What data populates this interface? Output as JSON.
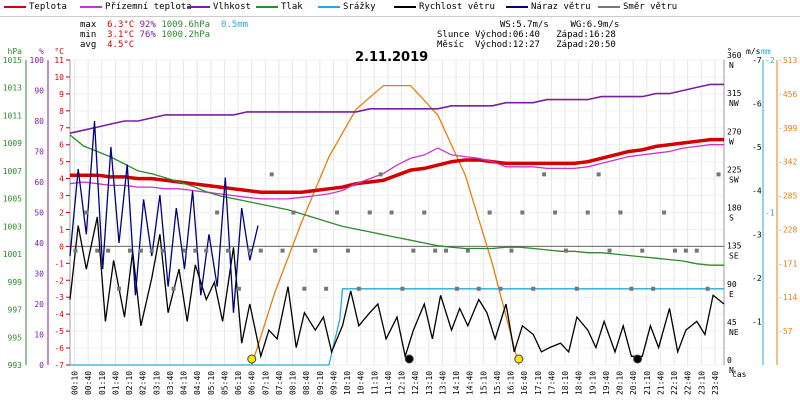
{
  "legend": [
    {
      "label": "Teplota",
      "color": "#d40000"
    },
    {
      "label": "Přízemní teplota",
      "color": "#cc33cc"
    },
    {
      "label": "Vlhkost",
      "color": "#7a1fa2"
    },
    {
      "label": "Tlak",
      "color": "#2d8a2d"
    },
    {
      "label": "Srážky",
      "color": "#22aadd"
    },
    {
      "label": "Rychlost větru",
      "color": "#000000"
    },
    {
      "label": "Náraz větru",
      "color": "#000080"
    },
    {
      "label": "Směr větru",
      "color": "#777777"
    }
  ],
  "stats": {
    "max_label": "max",
    "min_label": "min",
    "avg_label": "avg",
    "max_temp": "6.3°C",
    "max_hum": "92%",
    "max_press": "1009.6hPa",
    "max_rain": "0.5mm",
    "min_temp": "3.1°C",
    "min_hum": "76%",
    "min_press": "1000.2hPa",
    "avg_temp": "4.5°C",
    "ws": "WS:5.7m/s",
    "wg": "WG:6.9m/s",
    "sun_label": "Slunce",
    "sun_rise": "Východ:06:40",
    "sun_set": "Západ:16:28",
    "moon_label": "Měsíc",
    "moon_rise": "Východ:12:27",
    "moon_set": "Západ:20:50"
  },
  "chart_data": {
    "type": "line",
    "title": "2.11.2019",
    "x_unit": "čas",
    "x_ticks": [
      "00:10",
      "00:40",
      "01:10",
      "01:40",
      "02:10",
      "02:40",
      "03:10",
      "03:40",
      "04:10",
      "04:40",
      "05:10",
      "05:40",
      "06:10",
      "06:40",
      "07:10",
      "07:40",
      "08:10",
      "08:40",
      "09:10",
      "09:40",
      "10:10",
      "10:40",
      "11:10",
      "11:40",
      "12:10",
      "12:40",
      "13:10",
      "13:40",
      "14:10",
      "14:40",
      "15:10",
      "15:40",
      "16:10",
      "16:40",
      "17:10",
      "17:40",
      "18:10",
      "18:40",
      "19:10",
      "19:40",
      "20:10",
      "20:40",
      "21:10",
      "21:40",
      "22:10",
      "22:40",
      "23:10",
      "23:40"
    ],
    "axes": {
      "hpa": {
        "unit": "hPa",
        "ticks": [
          993,
          995,
          997,
          999,
          1001,
          1003,
          1005,
          1007,
          1009,
          1011,
          1013,
          1015
        ],
        "color": "#2d8a2d"
      },
      "percent": {
        "unit": "%",
        "ticks": [
          0,
          10,
          20,
          30,
          40,
          50,
          60,
          70,
          80,
          90,
          100
        ],
        "color": "#7a1fa2"
      },
      "celsius": {
        "unit": "°C",
        "ticks": [
          -7,
          -6,
          -5,
          -4,
          -3,
          -2,
          -1,
          0,
          1,
          2,
          3,
          4,
          5,
          6,
          7,
          8,
          9,
          10,
          11
        ],
        "color": "#d40000"
      },
      "degrees": {
        "unit": "°",
        "ticks": [
          0,
          45,
          90,
          135,
          180,
          225,
          270,
          315,
          360
        ],
        "labels": [
          "N",
          "NE",
          "E",
          "SE",
          "S",
          "SW",
          "W",
          "NW",
          "N"
        ]
      },
      "ms": {
        "unit": "m/s",
        "ticks": [
          0,
          1,
          2,
          3,
          4,
          5,
          6,
          7
        ]
      },
      "mm": {
        "unit": "mm",
        "ticks": [
          0,
          1,
          2
        ],
        "color": "#22aadd"
      },
      "radiation": {
        "ticks": [
          0,
          57,
          114,
          171,
          228,
          285,
          342,
          399,
          456,
          513
        ],
        "color": "#e87f0c"
      }
    },
    "series": [
      {
        "name": "Teplota",
        "axis": "celsius",
        "color": "#d40000",
        "x": [
          0,
          0.5,
          1,
          1.5,
          2,
          2.5,
          3,
          3.5,
          4,
          4.5,
          5,
          5.5,
          6,
          6.5,
          7,
          7.5,
          8,
          8.5,
          9,
          9.5,
          10,
          10.5,
          11,
          11.5,
          12,
          12.5,
          13,
          13.5,
          14,
          14.5,
          15,
          15.5,
          16,
          16.5,
          17,
          17.5,
          18,
          18.5,
          19,
          19.5,
          20,
          20.5,
          21,
          21.5,
          22,
          22.5,
          23,
          23.5,
          24
        ],
        "values": [
          4.2,
          4.2,
          4.2,
          4.1,
          4.1,
          4,
          4,
          3.9,
          3.8,
          3.7,
          3.6,
          3.5,
          3.4,
          3.3,
          3.2,
          3.2,
          3.2,
          3.2,
          3.3,
          3.4,
          3.5,
          3.7,
          3.8,
          3.9,
          4.2,
          4.5,
          4.6,
          4.8,
          5,
          5.1,
          5.1,
          5,
          4.9,
          4.9,
          4.9,
          4.9,
          4.9,
          4.9,
          5,
          5.2,
          5.4,
          5.6,
          5.7,
          5.9,
          6,
          6.1,
          6.2,
          6.3,
          6.3
        ]
      },
      {
        "name": "Přízemní teplota",
        "axis": "celsius",
        "color": "#cc33cc",
        "x": [
          0,
          0.5,
          1,
          1.5,
          2,
          2.5,
          3,
          3.5,
          4,
          4.5,
          5,
          5.5,
          6,
          6.5,
          7,
          7.5,
          8,
          8.5,
          9,
          9.5,
          10,
          10.5,
          11,
          11.5,
          12,
          12.5,
          13,
          13.5,
          14,
          14.5,
          15,
          15.5,
          16,
          16.5,
          17,
          17.5,
          18,
          18.5,
          19,
          19.5,
          20,
          20.5,
          21,
          21.5,
          22,
          22.5,
          23,
          23.5,
          24
        ],
        "values": [
          3.7,
          3.8,
          3.7,
          3.6,
          3.6,
          3.5,
          3.5,
          3.4,
          3.4,
          3.3,
          3.2,
          3.1,
          3.0,
          2.9,
          2.8,
          2.8,
          2.8,
          2.9,
          3.0,
          3.1,
          3.3,
          3.7,
          4.0,
          4.3,
          4.8,
          5.2,
          5.4,
          5.8,
          5.4,
          5.3,
          5.2,
          5.0,
          4.7,
          4.7,
          4.7,
          4.6,
          4.6,
          4.6,
          4.7,
          4.9,
          5.1,
          5.3,
          5.4,
          5.5,
          5.6,
          5.8,
          5.9,
          6.0,
          6.0
        ]
      },
      {
        "name": "Vlhkost",
        "axis": "percent",
        "color": "#7a1fa2",
        "x": [
          0,
          0.5,
          1,
          1.5,
          2,
          2.5,
          3,
          3.5,
          4,
          4.5,
          5,
          5.5,
          6,
          6.5,
          7,
          7.5,
          8,
          8.5,
          9,
          9.5,
          10,
          10.5,
          11,
          11.5,
          12,
          12.5,
          13,
          13.5,
          14,
          14.5,
          15,
          15.5,
          16,
          16.5,
          17,
          17.5,
          18,
          18.5,
          19,
          19.5,
          20,
          20.5,
          21,
          21.5,
          22,
          22.5,
          23,
          23.5,
          24
        ],
        "values": [
          76,
          77,
          78,
          79,
          80,
          80,
          81,
          82,
          82,
          82,
          82,
          82,
          82,
          83,
          83,
          83,
          83,
          83,
          83,
          83,
          83,
          83,
          84,
          84,
          84,
          84,
          84,
          84,
          85,
          85,
          85,
          85,
          86,
          86,
          86,
          87,
          87,
          87,
          87,
          88,
          88,
          88,
          88,
          89,
          89,
          90,
          91,
          92,
          92
        ]
      },
      {
        "name": "Tlak",
        "axis": "hpa",
        "color": "#2d8a2d",
        "x": [
          0,
          0.5,
          1,
          1.5,
          2,
          2.5,
          3,
          3.5,
          4,
          4.5,
          5,
          5.5,
          6,
          6.5,
          7,
          7.5,
          8,
          8.5,
          9,
          9.5,
          10,
          10.5,
          11,
          11.5,
          12,
          12.5,
          13,
          13.5,
          14,
          14.5,
          15,
          15.5,
          16,
          16.5,
          17,
          17.5,
          18,
          18.5,
          19,
          19.5,
          20,
          20.5,
          21,
          21.5,
          22,
          22.5,
          23,
          23.5,
          24
        ],
        "values": [
          1009.6,
          1008.8,
          1008.4,
          1008.0,
          1007.5,
          1007.0,
          1006.8,
          1006.5,
          1006.2,
          1005.9,
          1005.5,
          1005.2,
          1005.0,
          1004.8,
          1004.6,
          1004.4,
          1004.2,
          1003.9,
          1003.6,
          1003.3,
          1003.0,
          1002.8,
          1002.6,
          1002.4,
          1002.2,
          1002.0,
          1001.8,
          1001.6,
          1001.5,
          1001.4,
          1001.4,
          1001.4,
          1001.5,
          1001.5,
          1001.4,
          1001.3,
          1001.2,
          1001.2,
          1001.1,
          1001.1,
          1001.0,
          1000.9,
          1000.8,
          1000.7,
          1000.6,
          1000.5,
          1000.3,
          1000.2,
          1000.2
        ]
      },
      {
        "name": "Srážky",
        "axis": "mm",
        "color": "#22aadd",
        "x": [
          0,
          9.5,
          9.7,
          9.9,
          10.0,
          10.3,
          11,
          12,
          13,
          14,
          15,
          16,
          17,
          18,
          19,
          20,
          21,
          22,
          23,
          24
        ],
        "values": [
          0,
          0,
          0.15,
          0.3,
          0.5,
          0.5,
          0.5,
          0.5,
          0.5,
          0.5,
          0.5,
          0.5,
          0.5,
          0.5,
          0.5,
          0.5,
          0.5,
          0.5,
          0.5,
          0.5
        ]
      },
      {
        "name": "Rychlost větru",
        "axis": "ms",
        "color": "#000000",
        "x": [
          0,
          0.3,
          0.6,
          1,
          1.3,
          1.6,
          2,
          2.3,
          2.6,
          3,
          3.3,
          3.6,
          4,
          4.3,
          4.6,
          5,
          5.3,
          5.6,
          6,
          6.3,
          6.6,
          7,
          7.3,
          7.6,
          8,
          8.3,
          8.6,
          9,
          9.3,
          9.6,
          10,
          10.3,
          10.6,
          11,
          11.3,
          11.6,
          12,
          12.3,
          12.6,
          13,
          13.3,
          13.6,
          14,
          14.3,
          14.6,
          15,
          15.3,
          15.6,
          16,
          16.3,
          16.6,
          17,
          17.3,
          17.6,
          18,
          18.3,
          18.6,
          19,
          19.3,
          19.6,
          20,
          20.3,
          20.6,
          21,
          21.3,
          21.6,
          22,
          22.3,
          22.6,
          23,
          23.3,
          23.6,
          24
        ],
        "values": [
          1.5,
          3.2,
          2.2,
          3.4,
          1.0,
          2.4,
          1.1,
          2.6,
          0.9,
          2.0,
          3.0,
          1.2,
          2.2,
          1.0,
          2.3,
          1.5,
          1.9,
          1.0,
          2.7,
          0.5,
          1.4,
          0.2,
          0.8,
          0.6,
          1.8,
          0.4,
          1.2,
          0.8,
          1.1,
          0.3,
          0.9,
          1.7,
          0.9,
          1.2,
          1.4,
          0.6,
          1.1,
          0.2,
          0.8,
          1.4,
          0.6,
          1.6,
          0.8,
          1.3,
          0.9,
          1.5,
          1.2,
          0.6,
          1.4,
          0.3,
          0.9,
          0.7,
          0.3,
          0.4,
          0.5,
          0.3,
          1.1,
          0.8,
          0.4,
          1.0,
          0.3,
          0.9,
          0.2,
          0.2,
          0.9,
          0.4,
          1.3,
          0.3,
          0.8,
          1.0,
          0.7,
          1.6,
          1.4
        ]
      },
      {
        "name": "Náraz větru",
        "axis": "ms",
        "color": "#000080",
        "x": [
          0,
          0.3,
          0.6,
          0.9,
          1.2,
          1.5,
          1.8,
          2.1,
          2.4,
          2.7,
          3,
          3.3,
          3.6,
          3.9,
          4.2,
          4.5,
          4.8,
          5.1,
          5.4,
          5.7,
          6,
          6.3,
          6.6,
          6.9
        ],
        "values": [
          2.5,
          4.5,
          3.0,
          5.6,
          2.2,
          5.0,
          2.8,
          4.6,
          1.6,
          3.8,
          2.5,
          3.9,
          1.8,
          3.6,
          2.2,
          4.0,
          1.6,
          3.0,
          1.8,
          4.3,
          1.2,
          3.6,
          2.4,
          3.2
        ]
      },
      {
        "name": "Směr větru",
        "axis": "degrees",
        "color": "#777777",
        "type": "scatter",
        "x": [
          0.2,
          0.6,
          1.0,
          1.4,
          1.8,
          2.2,
          2.6,
          3.0,
          3.4,
          3.8,
          4.2,
          4.6,
          5.0,
          5.4,
          5.8,
          6.2,
          6.6,
          7.0,
          7.4,
          7.8,
          8.2,
          8.6,
          9.0,
          9.4,
          9.8,
          10.2,
          10.6,
          11.0,
          11.4,
          11.8,
          12.2,
          12.6,
          13.0,
          13.4,
          13.8,
          14.2,
          14.6,
          15.0,
          15.4,
          15.8,
          16.2,
          16.6,
          17.0,
          17.4,
          17.8,
          18.2,
          18.6,
          19.0,
          19.4,
          19.8,
          20.2,
          20.6,
          21.0,
          21.4,
          21.8,
          22.2,
          22.6,
          23.0,
          23.4,
          23.8
        ],
        "values": [
          135,
          180,
          135,
          135,
          90,
          135,
          135,
          135,
          135,
          90,
          135,
          135,
          135,
          180,
          135,
          90,
          135,
          135,
          225,
          135,
          180,
          90,
          135,
          90,
          180,
          135,
          90,
          180,
          225,
          180,
          90,
          135,
          180,
          135,
          135,
          90,
          135,
          90,
          180,
          90,
          135,
          180,
          90,
          225,
          180,
          135,
          90,
          180,
          225,
          135,
          180,
          90,
          135,
          90,
          180,
          135,
          135,
          135,
          90,
          225
        ]
      }
    ],
    "markers": [
      {
        "label": "sunrise",
        "x": 6.67,
        "color": "#f2e600"
      },
      {
        "label": "sunset",
        "x": 16.47,
        "color": "#f2e600"
      },
      {
        "label": "moonrise",
        "x": 12.45,
        "color": "#000000"
      },
      {
        "label": "moonset",
        "x": 20.83,
        "color": "#000000"
      }
    ],
    "radiation": {
      "axis": "radiation",
      "color": "#e87f0c",
      "x": [
        6.67,
        7.5,
        8.5,
        9.5,
        10.5,
        11.5,
        12.5,
        13.5,
        14.5,
        15.5,
        16.47
      ],
      "values": [
        0,
        120,
        240,
        350,
        430,
        470,
        470,
        420,
        320,
        170,
        0
      ]
    }
  }
}
